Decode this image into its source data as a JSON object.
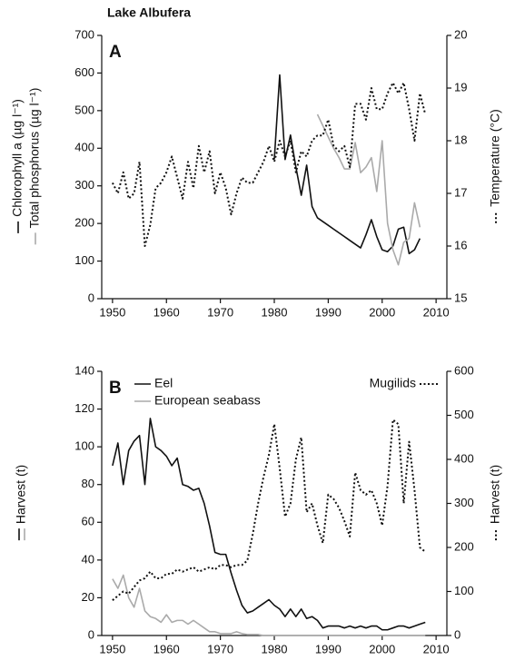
{
  "chart_data": [
    {
      "type": "line",
      "title": "Lake Albufera",
      "panel": "A",
      "x": [
        1950,
        1951,
        1952,
        1953,
        1954,
        1955,
        1956,
        1957,
        1958,
        1959,
        1960,
        1961,
        1962,
        1963,
        1964,
        1965,
        1966,
        1967,
        1968,
        1969,
        1970,
        1971,
        1972,
        1973,
        1974,
        1975,
        1976,
        1977,
        1978,
        1979,
        1980,
        1981,
        1982,
        1983,
        1984,
        1985,
        1986,
        1987,
        1988,
        1989,
        1990,
        1991,
        1992,
        1993,
        1994,
        1995,
        1996,
        1997,
        1998,
        1999,
        2000,
        2001,
        2002,
        2003,
        2004,
        2005,
        2006,
        2007,
        2008
      ],
      "xlim": [
        1948,
        2012
      ],
      "xticks": [
        1950,
        1960,
        1970,
        1980,
        1990,
        2000,
        2010
      ],
      "ylim": [
        0,
        700
      ],
      "yticks": [
        0,
        100,
        200,
        300,
        400,
        500,
        600,
        700
      ],
      "y2lim": [
        15,
        20
      ],
      "y2ticks": [
        15,
        16,
        17,
        18,
        19,
        20
      ],
      "series": [
        {
          "name": "Chlorophyll a (µg l⁻¹)",
          "color": "#111111",
          "dash": "solid",
          "values": [
            null,
            null,
            null,
            null,
            null,
            null,
            null,
            null,
            null,
            null,
            null,
            null,
            null,
            null,
            null,
            null,
            null,
            null,
            null,
            null,
            null,
            null,
            null,
            null,
            null,
            null,
            null,
            null,
            null,
            null,
            370,
            595,
            370,
            435,
            350,
            275,
            355,
            245,
            215,
            205,
            195,
            185,
            175,
            165,
            155,
            145,
            135,
            170,
            210,
            165,
            130,
            125,
            140,
            185,
            190,
            120,
            130,
            160,
            null
          ]
        },
        {
          "name": "Total phosphorus (µg l⁻¹)",
          "color": "#aaaaaa",
          "dash": "solid",
          "values": [
            null,
            null,
            null,
            null,
            null,
            null,
            null,
            null,
            null,
            null,
            null,
            null,
            null,
            null,
            null,
            null,
            null,
            null,
            null,
            null,
            null,
            null,
            null,
            null,
            null,
            null,
            null,
            null,
            null,
            null,
            null,
            null,
            null,
            null,
            null,
            null,
            null,
            null,
            490,
            460,
            430,
            400,
            375,
            345,
            345,
            415,
            335,
            350,
            375,
            285,
            420,
            200,
            130,
            90,
            150,
            160,
            255,
            190,
            null
          ]
        },
        {
          "name": "Temperature (°C)",
          "color": "#111111",
          "dash": "dotted",
          "axis": "y2",
          "values": [
            17.2,
            17.0,
            17.4,
            16.9,
            17.0,
            17.6,
            16.0,
            16.4,
            17.1,
            17.2,
            17.4,
            17.7,
            17.3,
            16.9,
            17.6,
            17.1,
            17.9,
            17.4,
            17.8,
            17.0,
            17.4,
            17.1,
            16.6,
            17.0,
            17.3,
            17.2,
            17.2,
            17.4,
            17.6,
            17.9,
            17.6,
            18.0,
            17.7,
            18.0,
            17.4,
            17.8,
            17.7,
            18.0,
            18.1,
            18.1,
            18.4,
            17.9,
            17.8,
            17.9,
            17.5,
            18.7,
            18.7,
            18.4,
            19.0,
            18.6,
            18.6,
            18.9,
            19.1,
            18.9,
            19.1,
            18.6,
            18.0,
            18.9,
            18.5
          ]
        }
      ]
    },
    {
      "type": "line",
      "panel": "B",
      "ylabel": "Harvest (t)",
      "y2label": "Harvest (t)",
      "x": [
        1950,
        1951,
        1952,
        1953,
        1954,
        1955,
        1956,
        1957,
        1958,
        1959,
        1960,
        1961,
        1962,
        1963,
        1964,
        1965,
        1966,
        1967,
        1968,
        1969,
        1970,
        1971,
        1972,
        1973,
        1974,
        1975,
        1976,
        1977,
        1978,
        1979,
        1980,
        1981,
        1982,
        1983,
        1984,
        1985,
        1986,
        1987,
        1988,
        1989,
        1990,
        1991,
        1992,
        1993,
        1994,
        1995,
        1996,
        1997,
        1998,
        1999,
        2000,
        2001,
        2002,
        2003,
        2004,
        2005,
        2006,
        2007,
        2008
      ],
      "xlim": [
        1948,
        2012
      ],
      "xticks": [
        1950,
        1960,
        1970,
        1980,
        1990,
        2000,
        2010
      ],
      "ylim": [
        0,
        140
      ],
      "yticks": [
        0,
        20,
        40,
        60,
        80,
        100,
        120,
        140
      ],
      "y2lim": [
        0,
        600
      ],
      "y2ticks": [
        0,
        100,
        200,
        300,
        400,
        500,
        600
      ],
      "series": [
        {
          "name": "Eel",
          "color": "#111111",
          "dash": "solid",
          "values": [
            90,
            102,
            80,
            98,
            103,
            106,
            80,
            115,
            100,
            98,
            95,
            90,
            94,
            80,
            79,
            77,
            78,
            70,
            58,
            44,
            43,
            43,
            33,
            24,
            16,
            12,
            13,
            15,
            17,
            19,
            16,
            14,
            10,
            14,
            10,
            14,
            9,
            10,
            8,
            4,
            5,
            5,
            5,
            4,
            5,
            4,
            5,
            4,
            5,
            5,
            3,
            3,
            4,
            5,
            5,
            4,
            5,
            6,
            7
          ]
        },
        {
          "name": "European seabass",
          "color": "#aaaaaa",
          "dash": "solid",
          "values": [
            30,
            25,
            32,
            20,
            15,
            25,
            13,
            10,
            9,
            7,
            11,
            7,
            8,
            8,
            6,
            8,
            6,
            4,
            2,
            2,
            1,
            1,
            1,
            2,
            1,
            0.5,
            0.5,
            0.5,
            0,
            0,
            0,
            0,
            0,
            0,
            0,
            0,
            0,
            0,
            0,
            0,
            0,
            0,
            0,
            0,
            0,
            0,
            0,
            0,
            0,
            0,
            0,
            0,
            0,
            0,
            0,
            0,
            0,
            0,
            0
          ]
        },
        {
          "name": "Mugilids",
          "color": "#111111",
          "dash": "dotted",
          "axis": "y2",
          "values": [
            80,
            90,
            100,
            95,
            110,
            125,
            130,
            145,
            130,
            130,
            140,
            140,
            150,
            145,
            150,
            155,
            145,
            150,
            155,
            150,
            160,
            160,
            155,
            160,
            160,
            170,
            230,
            300,
            360,
            410,
            480,
            380,
            270,
            300,
            400,
            450,
            280,
            300,
            250,
            210,
            320,
            310,
            290,
            260,
            225,
            370,
            330,
            320,
            330,
            300,
            250,
            340,
            490,
            480,
            300,
            440,
            330,
            200,
            190
          ]
        }
      ]
    }
  ]
}
